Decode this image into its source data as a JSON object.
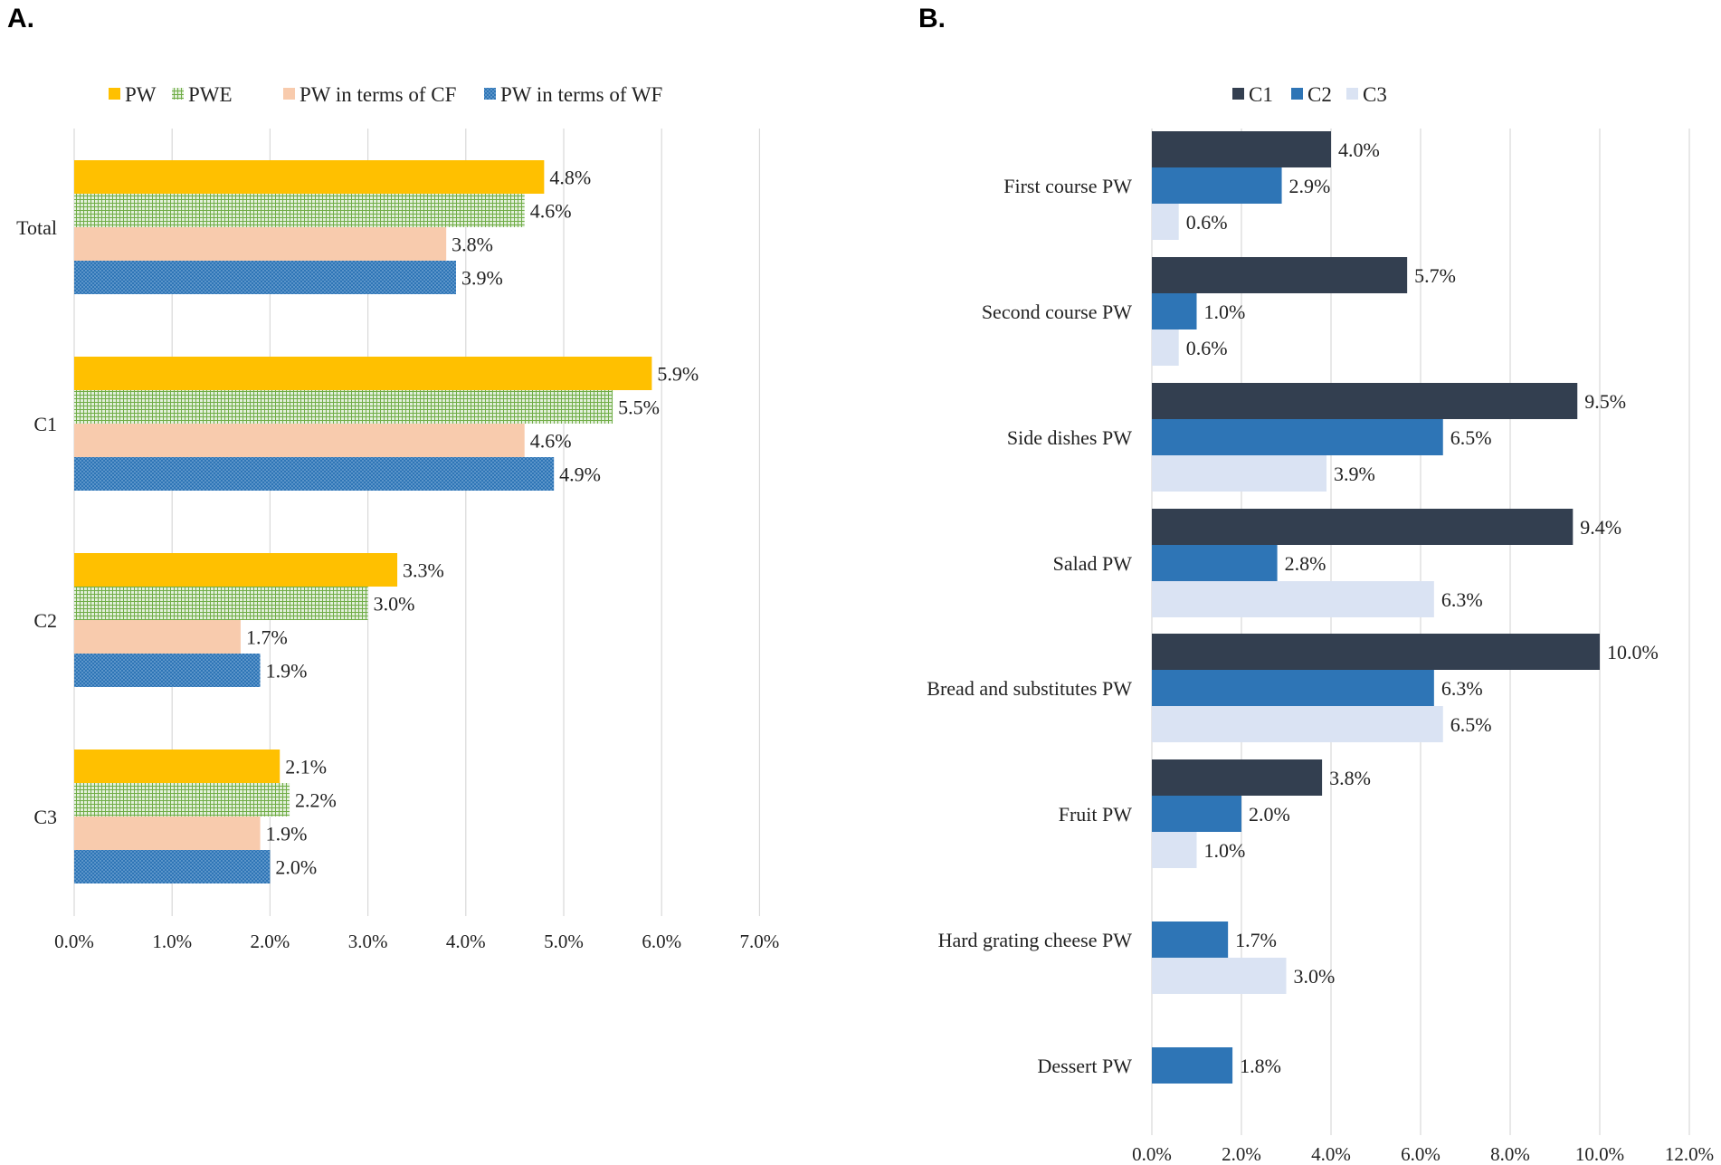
{
  "chart_data": [
    {
      "panel": "A.",
      "type": "bar",
      "orientation": "horizontal",
      "categories": [
        "Total",
        "C1",
        "C2",
        "C3"
      ],
      "series": [
        {
          "name": "PW",
          "values": [
            4.8,
            5.9,
            3.3,
            2.1
          ],
          "labels": [
            "4.8%",
            "5.9%",
            "3.3%",
            "2.1%"
          ],
          "color": "#FFC000",
          "pattern": "solid"
        },
        {
          "name": "PWE",
          "values": [
            4.6,
            5.5,
            3.0,
            2.2
          ],
          "labels": [
            "4.6%",
            "5.5%",
            "3.0%",
            "2.2%"
          ],
          "color": "#70AD47",
          "pattern": "grid"
        },
        {
          "name": "PW in terms of CF",
          "values": [
            3.8,
            4.6,
            1.7,
            1.9
          ],
          "labels": [
            "3.8%",
            "4.6%",
            "1.7%",
            "1.9%"
          ],
          "color": "#F8CBAD",
          "pattern": "solid"
        },
        {
          "name": "PW in terms of WF",
          "values": [
            3.9,
            4.9,
            1.9,
            2.0
          ],
          "labels": [
            "3.9%",
            "4.9%",
            "1.9%",
            "2.0%"
          ],
          "color": "#2E75B6",
          "pattern": "dots"
        }
      ],
      "xlim": [
        0,
        7
      ],
      "xticks": [
        "0.0%",
        "1.0%",
        "2.0%",
        "3.0%",
        "4.0%",
        "5.0%",
        "6.0%",
        "7.0%"
      ],
      "legend_position": "top",
      "grid": true
    },
    {
      "panel": "B.",
      "type": "bar",
      "orientation": "horizontal",
      "categories": [
        "First course PW",
        "Second course PW",
        "Side dishes PW",
        "Salad PW",
        "Bread and substitutes PW",
        "Fruit PW",
        "Hard grating cheese PW",
        "Dessert PW"
      ],
      "series": [
        {
          "name": "C1",
          "values": [
            4.0,
            5.7,
            9.5,
            9.4,
            10.0,
            3.8,
            null,
            null
          ],
          "labels": [
            "4.0%",
            "5.7%",
            "9.5%",
            "9.4%",
            "10.0%",
            "3.8%",
            null,
            null
          ],
          "color": "#333F50"
        },
        {
          "name": "C2",
          "values": [
            2.9,
            1.0,
            6.5,
            2.8,
            6.3,
            2.0,
            1.7,
            1.8
          ],
          "labels": [
            "2.9%",
            "1.0%",
            "6.5%",
            "2.8%",
            "6.3%",
            "2.0%",
            "1.7%",
            "1.8%"
          ],
          "color": "#2E75B6"
        },
        {
          "name": "C3",
          "values": [
            0.6,
            0.6,
            3.9,
            6.3,
            6.5,
            1.0,
            3.0,
            null
          ],
          "labels": [
            "0.6%",
            "0.6%",
            "3.9%",
            "6.3%",
            "6.5%",
            "1.0%",
            "3.0%",
            null
          ],
          "color": "#DAE3F3"
        }
      ],
      "xlim": [
        0,
        12
      ],
      "xticks": [
        "0.0%",
        "2.0%",
        "4.0%",
        "6.0%",
        "8.0%",
        "10.0%",
        "12.0%"
      ],
      "legend_position": "top",
      "grid": true
    }
  ]
}
